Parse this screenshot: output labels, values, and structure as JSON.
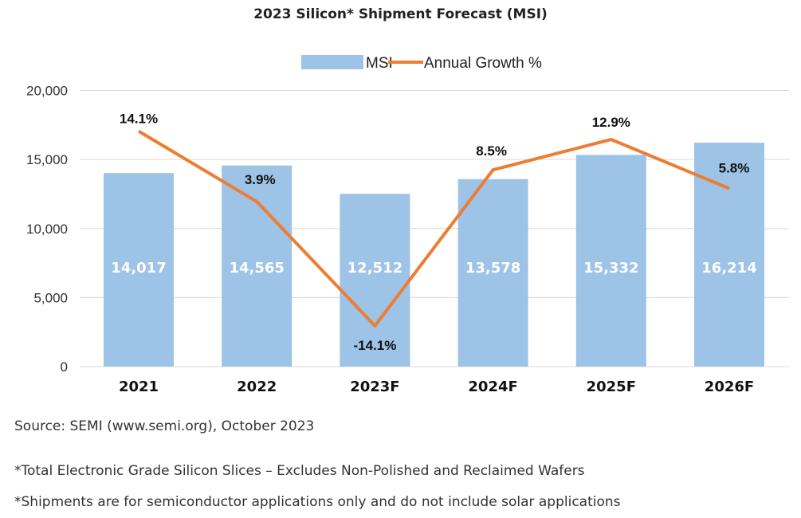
{
  "chart_data": {
    "type": "bar",
    "title": "2023 Silicon* Shipment Forecast (MSI)",
    "categories": [
      "2021",
      "2022",
      "2023F",
      "2024F",
      "2025F",
      "2026F"
    ],
    "series": [
      {
        "name": "MSI",
        "type": "bar",
        "axis": "primary",
        "color": "#9dc3e6",
        "values": [
          14017,
          14565,
          12512,
          13578,
          15332,
          16214
        ],
        "labels": [
          "14,017",
          "14,565",
          "12,512",
          "13,578",
          "15,332",
          "16,214"
        ]
      },
      {
        "name": "Annual Growth %",
        "type": "line",
        "axis": "secondary",
        "color": "#ed7d31",
        "values": [
          14.1,
          3.9,
          -14.1,
          8.5,
          12.9,
          5.8
        ],
        "labels": [
          "14.1%",
          "3.9%",
          "-14.1%",
          "8.5%",
          "12.9%",
          "5.8%"
        ]
      }
    ],
    "ylim": [
      0,
      20000
    ],
    "yticks": [
      "0",
      "5,000",
      "10,000",
      "15,000",
      "20,000"
    ],
    "y2lim": [
      -20,
      20
    ],
    "grid": true,
    "legend": "top",
    "xlabel": "",
    "ylabel": ""
  },
  "notes": {
    "source": "Source: SEMI (www.semi.org), October 2023",
    "footnote1": "*Total Electronic Grade Silicon Slices – Excludes Non-Polished and Reclaimed Wafers",
    "footnote2": "*Shipments are for semiconductor applications only and do not include solar applications"
  }
}
